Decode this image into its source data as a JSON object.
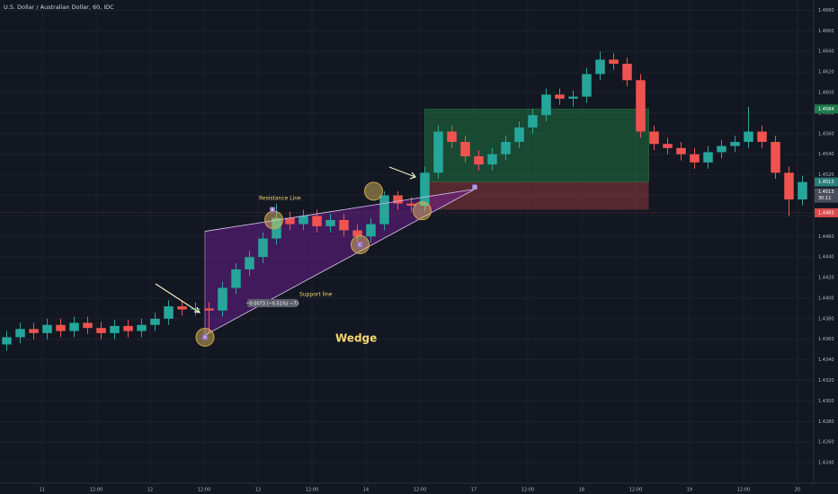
{
  "chart_data": {
    "type": "candlestick",
    "title": "U.S. Dollar / Australian Dollar, 60, IDC",
    "up_color": "#26a69a",
    "down_color": "#ef5350",
    "grid": true,
    "xlim": [
      -0.5,
      59.5
    ],
    "ylim": [
      1.422,
      1.469
    ],
    "xticks": [
      {
        "value": 2.63,
        "label": "11"
      },
      {
        "value": 6.63,
        "label": "12:00"
      },
      {
        "value": 10.63,
        "label": "12"
      },
      {
        "value": 14.63,
        "label": "12:00"
      },
      {
        "value": 18.63,
        "label": "13"
      },
      {
        "value": 22.63,
        "label": "12:00"
      },
      {
        "value": 26.63,
        "label": "14"
      },
      {
        "value": 30.63,
        "label": "12:00"
      },
      {
        "value": 34.63,
        "label": "17"
      },
      {
        "value": 38.63,
        "label": "12:00"
      },
      {
        "value": 42.63,
        "label": "18"
      },
      {
        "value": 46.63,
        "label": "12:00"
      },
      {
        "value": 50.63,
        "label": "19"
      },
      {
        "value": 54.63,
        "label": "12:00"
      },
      {
        "value": 58.63,
        "label": "20"
      }
    ],
    "yticks": [
      {
        "value": 1.424,
        "label": "1.4240"
      },
      {
        "value": 1.426,
        "label": "1.4260"
      },
      {
        "value": 1.428,
        "label": "1.4280"
      },
      {
        "value": 1.43,
        "label": "1.4300"
      },
      {
        "value": 1.432,
        "label": "1.4320"
      },
      {
        "value": 1.434,
        "label": "1.4340"
      },
      {
        "value": 1.436,
        "label": "1.4360"
      },
      {
        "value": 1.438,
        "label": "1.4380"
      },
      {
        "value": 1.44,
        "label": "1.4400"
      },
      {
        "value": 1.442,
        "label": "1.4420"
      },
      {
        "value": 1.444,
        "label": "1.4440"
      },
      {
        "value": 1.446,
        "label": "1.4460"
      },
      {
        "value": 1.448,
        "label": "1.4480"
      },
      {
        "value": 1.45,
        "label": "1.4500"
      },
      {
        "value": 1.452,
        "label": "1.4520"
      },
      {
        "value": 1.454,
        "label": "1.4540"
      },
      {
        "value": 1.456,
        "label": "1.4560"
      },
      {
        "value": 1.458,
        "label": "1.4580"
      },
      {
        "value": 1.46,
        "label": "1.4600"
      },
      {
        "value": 1.462,
        "label": "1.4620"
      },
      {
        "value": 1.464,
        "label": "1.4640"
      },
      {
        "value": 1.466,
        "label": "1.4660"
      },
      {
        "value": 1.468,
        "label": "1.4680"
      }
    ],
    "open": [
      1.4355,
      1.4362,
      1.437,
      1.4366,
      1.4374,
      1.4368,
      1.4376,
      1.4371,
      1.4366,
      1.4373,
      1.4368,
      1.4374,
      1.438,
      1.4392,
      1.4389,
      1.439,
      1.4388,
      1.441,
      1.4428,
      1.444,
      1.4458,
      1.4478,
      1.4472,
      1.448,
      1.447,
      1.4476,
      1.4466,
      1.446,
      1.4472,
      1.45,
      1.4492,
      1.449,
      1.4522,
      1.4562,
      1.4552,
      1.4538,
      1.453,
      1.454,
      1.4552,
      1.4566,
      1.4578,
      1.4598,
      1.4594,
      1.4596,
      1.4618,
      1.4632,
      1.4628,
      1.4612,
      1.4562,
      1.455,
      1.4546,
      1.454,
      1.4532,
      1.4542,
      1.4548,
      1.4552,
      1.4562,
      1.4552,
      1.4522,
      1.4496
    ],
    "high": [
      1.4368,
      1.4376,
      1.4376,
      1.438,
      1.438,
      1.4382,
      1.4382,
      1.4377,
      1.4379,
      1.4379,
      1.438,
      1.4386,
      1.4398,
      1.4398,
      1.4396,
      1.4396,
      1.4416,
      1.4434,
      1.4446,
      1.4464,
      1.4492,
      1.4484,
      1.4486,
      1.4486,
      1.4482,
      1.4482,
      1.4472,
      1.4478,
      1.4504,
      1.4504,
      1.4498,
      1.4528,
      1.4568,
      1.4568,
      1.4558,
      1.4544,
      1.4546,
      1.4558,
      1.4572,
      1.4584,
      1.4604,
      1.4604,
      1.4602,
      1.4624,
      1.464,
      1.4638,
      1.4634,
      1.4618,
      1.4568,
      1.4556,
      1.4552,
      1.4546,
      1.4548,
      1.4554,
      1.4558,
      1.4586,
      1.4568,
      1.4558,
      1.4528,
      1.4519
    ],
    "low": [
      1.4349,
      1.4356,
      1.436,
      1.436,
      1.4362,
      1.4362,
      1.4365,
      1.436,
      1.436,
      1.4362,
      1.4362,
      1.4368,
      1.4374,
      1.4383,
      1.4383,
      1.4366,
      1.4382,
      1.4404,
      1.4422,
      1.4434,
      1.4452,
      1.4466,
      1.4466,
      1.4464,
      1.4464,
      1.446,
      1.4454,
      1.4454,
      1.4466,
      1.4486,
      1.4484,
      1.4484,
      1.4516,
      1.4546,
      1.4532,
      1.4524,
      1.4524,
      1.4534,
      1.4546,
      1.456,
      1.4572,
      1.4588,
      1.4586,
      1.459,
      1.4612,
      1.4622,
      1.4606,
      1.4556,
      1.4544,
      1.454,
      1.4534,
      1.4526,
      1.4526,
      1.4536,
      1.4542,
      1.4546,
      1.4546,
      1.4516,
      1.448,
      1.449
    ],
    "close": [
      1.4362,
      1.437,
      1.4366,
      1.4374,
      1.4368,
      1.4376,
      1.4371,
      1.4366,
      1.4373,
      1.4368,
      1.4374,
      1.438,
      1.4392,
      1.4389,
      1.439,
      1.4388,
      1.441,
      1.4428,
      1.444,
      1.4458,
      1.4478,
      1.4472,
      1.448,
      1.447,
      1.4476,
      1.4466,
      1.446,
      1.4472,
      1.45,
      1.4492,
      1.449,
      1.4522,
      1.4562,
      1.4552,
      1.4538,
      1.453,
      1.454,
      1.4552,
      1.4566,
      1.4578,
      1.4598,
      1.4594,
      1.4596,
      1.4618,
      1.4632,
      1.4628,
      1.4612,
      1.4562,
      1.455,
      1.4546,
      1.454,
      1.4532,
      1.4542,
      1.4548,
      1.4552,
      1.4562,
      1.4552,
      1.4522,
      1.4496,
      1.4513
    ],
    "position": {
      "x_start": 31,
      "x_end": 47.6,
      "target": 1.4584,
      "entry": 1.4513,
      "stop": 1.4486
    },
    "current_price": 1.4483,
    "price_tags": [
      {
        "value": 1.4584,
        "label": "1.4584",
        "color": "#1e7a4a"
      },
      {
        "value": 1.4513,
        "label": "1.4513",
        "color": "#2a7f7a"
      },
      {
        "value": 1.4483,
        "label": "1.4483",
        "color": "#d84a4a"
      }
    ],
    "last_tag": {
      "value": 1.4513,
      "label": "1.4513",
      "countdown": "30:11"
    },
    "resistance": {
      "label": "Resistance Line",
      "x": [
        14.7,
        34.7
      ],
      "y": [
        1.4465,
        1.4506
      ]
    },
    "support": {
      "label": "Support line",
      "x": [
        14.7,
        34.7
      ],
      "y": [
        1.4364,
        1.4506
      ]
    },
    "pattern_label": "Wedge",
    "measure_label": "−0.0073 (−0.51%) −73",
    "points": [
      {
        "label": "A",
        "x": 14.7,
        "y": 1.4362
      },
      {
        "label": "B",
        "x": 19.7,
        "y": 1.4486
      },
      {
        "label": "C",
        "x": 26.2,
        "y": 1.4452
      },
      {
        "label": "D",
        "x": 34.7,
        "y": 1.4508
      }
    ],
    "highlights": [
      {
        "x": 14.7,
        "y": 1.4362
      },
      {
        "x": 19.8,
        "y": 1.4476
      },
      {
        "x": 27.2,
        "y": 1.4504
      },
      {
        "x": 26.2,
        "y": 1.4452
      },
      {
        "x": 30.8,
        "y": 1.4485
      }
    ]
  }
}
